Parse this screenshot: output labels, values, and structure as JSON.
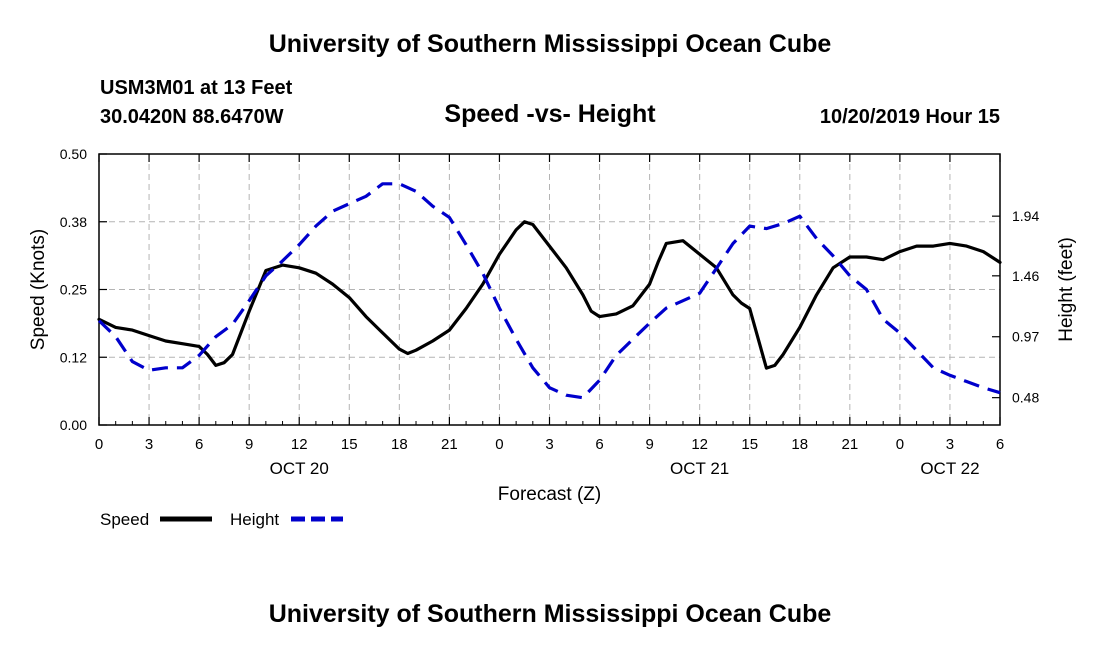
{
  "header": {
    "title_top": "University of Southern Mississippi Ocean Cube",
    "station": "USM3M01 at 13 Feet",
    "coords": "30.0420N 88.6470W",
    "chart_title": "Speed -vs- Height",
    "datetime": "10/20/2019 Hour 15",
    "title_bottom": "University of Southern Mississippi Ocean Cube"
  },
  "legend": {
    "speed_label": "Speed",
    "height_label": "Height"
  },
  "chart_data": {
    "type": "line",
    "title": "Speed -vs- Height",
    "xlabel": "Forecast (Z)",
    "ylabel_left": "Speed (Knots)",
    "ylabel_right": "Height (feet)",
    "x_range_hours": [
      0,
      54
    ],
    "x_ticks": [
      {
        "hour": 0,
        "label": "0"
      },
      {
        "hour": 3,
        "label": "3"
      },
      {
        "hour": 6,
        "label": "6"
      },
      {
        "hour": 9,
        "label": "9"
      },
      {
        "hour": 12,
        "label": "12"
      },
      {
        "hour": 15,
        "label": "15"
      },
      {
        "hour": 18,
        "label": "18"
      },
      {
        "hour": 21,
        "label": "21"
      },
      {
        "hour": 24,
        "label": "0"
      },
      {
        "hour": 27,
        "label": "3"
      },
      {
        "hour": 30,
        "label": "6"
      },
      {
        "hour": 33,
        "label": "9"
      },
      {
        "hour": 36,
        "label": "12"
      },
      {
        "hour": 39,
        "label": "15"
      },
      {
        "hour": 42,
        "label": "18"
      },
      {
        "hour": 45,
        "label": "21"
      },
      {
        "hour": 48,
        "label": "0"
      },
      {
        "hour": 51,
        "label": "3"
      },
      {
        "hour": 54,
        "label": "6"
      }
    ],
    "date_labels": [
      {
        "hour": 12,
        "label": "OCT 20"
      },
      {
        "hour": 36,
        "label": "OCT 21"
      },
      {
        "hour": 51,
        "label": "OCT 22"
      }
    ],
    "y_left": {
      "range": [
        0,
        0.5
      ],
      "ticks": [
        0.0,
        0.125,
        0.25,
        0.375,
        0.5
      ],
      "tick_labels": [
        "0.00",
        "0.12",
        "0.25",
        "0.38",
        "0.50"
      ]
    },
    "y_right": {
      "range": [
        0.26,
        2.44
      ],
      "ticks": [
        0.48,
        0.97,
        1.46,
        1.94
      ],
      "tick_labels": [
        "0.48",
        "0.97",
        "1.46",
        "1.94"
      ]
    },
    "series": [
      {
        "name": "Speed",
        "axis": "left",
        "color": "#000000",
        "dash": "solid",
        "x": [
          0,
          1,
          2,
          3,
          4,
          5,
          6,
          6.5,
          7,
          7.5,
          8,
          9,
          10,
          11,
          12,
          13,
          14,
          15,
          16,
          17,
          18,
          18.5,
          19,
          20,
          21,
          22,
          23,
          24,
          25,
          25.5,
          26,
          27,
          28,
          29,
          29.5,
          30,
          31,
          32,
          33,
          33.5,
          34,
          35,
          36,
          37,
          38,
          38.5,
          39,
          40,
          40.5,
          41,
          42,
          43,
          44,
          45,
          46,
          47,
          48,
          49,
          50,
          51,
          52,
          53,
          54
        ],
        "values": [
          0.195,
          0.18,
          0.175,
          0.165,
          0.155,
          0.15,
          0.145,
          0.13,
          0.11,
          0.115,
          0.13,
          0.21,
          0.285,
          0.295,
          0.29,
          0.28,
          0.26,
          0.235,
          0.2,
          0.17,
          0.14,
          0.132,
          0.138,
          0.155,
          0.175,
          0.215,
          0.26,
          0.315,
          0.36,
          0.375,
          0.37,
          0.33,
          0.29,
          0.24,
          0.21,
          0.2,
          0.205,
          0.22,
          0.26,
          0.3,
          0.335,
          0.34,
          0.315,
          0.29,
          0.24,
          0.225,
          0.215,
          0.105,
          0.11,
          0.13,
          0.18,
          0.24,
          0.29,
          0.31,
          0.31,
          0.305,
          0.32,
          0.33,
          0.33,
          0.335,
          0.33,
          0.32,
          0.3
        ]
      },
      {
        "name": "Height",
        "axis": "right",
        "color": "#0000cc",
        "dash": "dashed",
        "x": [
          0,
          1,
          2,
          3,
          4,
          5,
          6,
          7,
          8,
          9,
          10,
          11,
          12,
          13,
          14,
          15,
          16,
          17,
          18,
          19,
          20,
          21,
          22,
          23,
          24,
          25,
          26,
          27,
          28,
          29,
          30,
          31,
          32,
          33,
          34,
          35,
          36,
          37,
          38,
          39,
          40,
          41,
          42,
          43,
          44,
          45,
          46,
          47,
          48,
          49,
          50,
          51,
          52,
          53,
          54
        ],
        "values": [
          1.1,
          0.97,
          0.77,
          0.7,
          0.72,
          0.72,
          0.82,
          0.97,
          1.07,
          1.26,
          1.46,
          1.58,
          1.71,
          1.86,
          1.98,
          2.04,
          2.1,
          2.2,
          2.2,
          2.14,
          2.02,
          1.93,
          1.71,
          1.48,
          1.2,
          0.95,
          0.72,
          0.56,
          0.5,
          0.48,
          0.62,
          0.82,
          0.95,
          1.08,
          1.2,
          1.26,
          1.32,
          1.52,
          1.72,
          1.86,
          1.84,
          1.88,
          1.94,
          1.76,
          1.62,
          1.46,
          1.35,
          1.11,
          1.0,
          0.86,
          0.72,
          0.66,
          0.61,
          0.56,
          0.52
        ]
      }
    ],
    "grid": true,
    "legend_position": "bottom-left"
  }
}
